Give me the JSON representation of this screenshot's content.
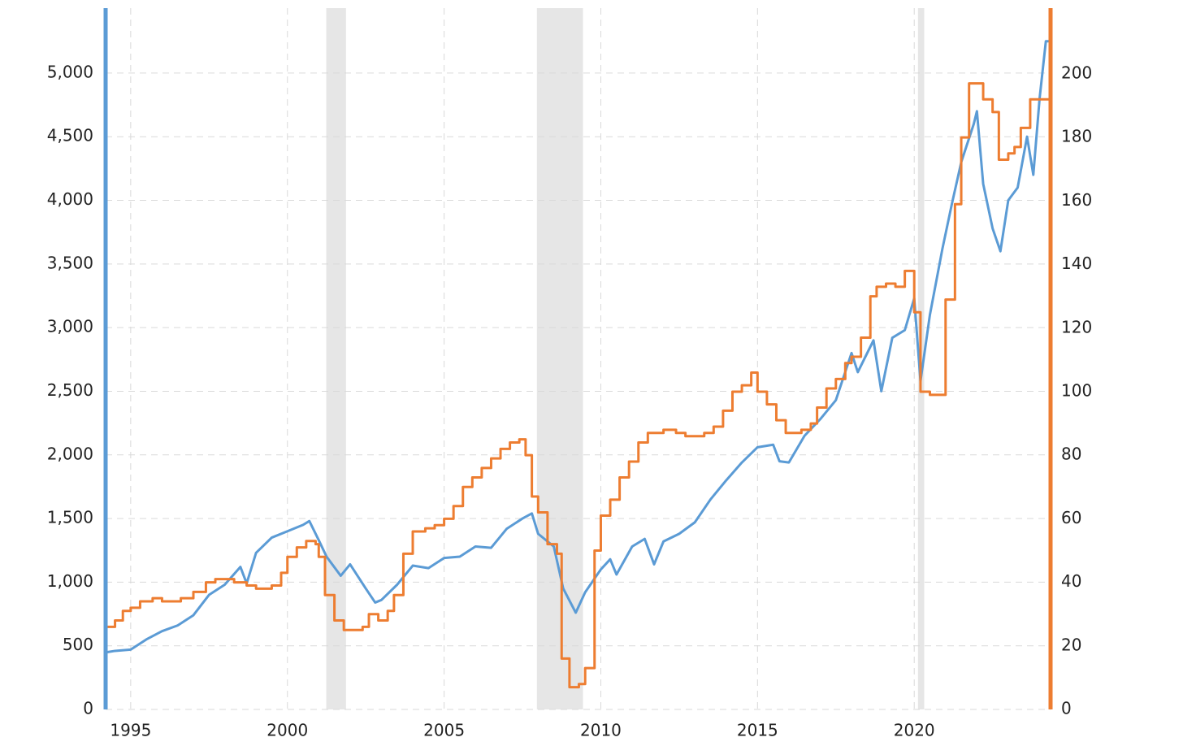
{
  "chart_data": {
    "type": "line",
    "xlim": [
      1994.2,
      2024.35
    ],
    "xticks": [
      1995,
      2000,
      2005,
      2010,
      2015,
      2020
    ],
    "ylim": [
      0,
      5510
    ],
    "yticks": [
      0,
      500,
      {
        "value": 1000,
        "label": "1,000"
      },
      {
        "value": 1500,
        "label": "1,500"
      },
      {
        "value": 2000,
        "label": "2,000"
      },
      {
        "value": 2500,
        "label": "2,500"
      },
      {
        "value": 3000,
        "label": "3,000"
      },
      {
        "value": 3500,
        "label": "3,500"
      },
      {
        "value": 4000,
        "label": "4,000"
      },
      {
        "value": 4500,
        "label": "4,500"
      },
      {
        "value": 5000,
        "label": "5,000"
      }
    ],
    "y2lim": [
      0,
      220.7
    ],
    "y2ticks": [
      0,
      20,
      40,
      60,
      80,
      100,
      120,
      140,
      160,
      180,
      200
    ],
    "grid": true,
    "recessions": [
      [
        2001.24,
        2001.87
      ],
      [
        2007.96,
        2009.43
      ],
      [
        2020.12,
        2020.32
      ]
    ],
    "series": [
      {
        "color": "#5b9bd5",
        "step": false,
        "x": [
          1994.25,
          1994.5,
          1995,
          1995.5,
          1996,
          1996.5,
          1997,
          1997.5,
          1998,
          1998.5,
          1998.7,
          1999,
          1999.5,
          2000,
          2000.5,
          2000.7,
          2001,
          2001.25,
          2001.7,
          2002,
          2002.5,
          2002.8,
          2003,
          2003.5,
          2004,
          2004.5,
          2005,
          2005.5,
          2006,
          2006.5,
          2007,
          2007.5,
          2007.8,
          2008,
          2008.5,
          2008.8,
          2009.2,
          2009.5,
          2010,
          2010.3,
          2010.5,
          2011,
          2011.4,
          2011.7,
          2012,
          2012.5,
          2013,
          2013.5,
          2014,
          2014.5,
          2015,
          2015.5,
          2015.7,
          2016,
          2016.5,
          2017,
          2017.5,
          2018,
          2018.2,
          2018.7,
          2018.95,
          2019.3,
          2019.7,
          2020,
          2020.2,
          2020.5,
          2020.9,
          2021.2,
          2021.5,
          2021.9,
          2022,
          2022.2,
          2022.5,
          2022.75,
          2023,
          2023.3,
          2023.6,
          2023.8,
          2024,
          2024.2,
          2024.3
        ],
        "values": [
          450,
          460,
          470,
          550,
          615,
          660,
          740,
          900,
          980,
          1120,
          990,
          1230,
          1350,
          1400,
          1450,
          1480,
          1330,
          1200,
          1050,
          1140,
          950,
          840,
          860,
          980,
          1130,
          1110,
          1190,
          1200,
          1280,
          1270,
          1420,
          1500,
          1540,
          1380,
          1280,
          950,
          760,
          920,
          1100,
          1180,
          1060,
          1280,
          1340,
          1140,
          1320,
          1380,
          1470,
          1650,
          1800,
          1940,
          2060,
          2080,
          1950,
          1940,
          2150,
          2280,
          2430,
          2800,
          2650,
          2900,
          2500,
          2920,
          2980,
          3230,
          2580,
          3100,
          3620,
          3970,
          4300,
          4600,
          4700,
          4130,
          3780,
          3600,
          4000,
          4100,
          4500,
          4200,
          4800,
          5250,
          5250
        ]
      },
      {
        "color": "#ed7d31",
        "step": true,
        "axis": "y2",
        "x": [
          1994.25,
          1994.5,
          1994.75,
          1995,
          1995.3,
          1995.7,
          1996,
          1996.6,
          1997,
          1997.4,
          1997.7,
          1998.3,
          1998.7,
          1999,
          1999.5,
          1999.8,
          2000,
          2000.3,
          2000.6,
          2000.9,
          2001,
          2001.2,
          2001.5,
          2001.8,
          2002.4,
          2002.6,
          2002.9,
          2003.2,
          2003.4,
          2003.7,
          2004,
          2004.4,
          2004.7,
          2005,
          2005.3,
          2005.6,
          2005.9,
          2006.2,
          2006.5,
          2006.8,
          2007.1,
          2007.4,
          2007.6,
          2007.8,
          2008,
          2008.3,
          2008.6,
          2008.75,
          2009,
          2009.3,
          2009.5,
          2009.8,
          2010,
          2010.3,
          2010.6,
          2010.9,
          2011.2,
          2011.5,
          2012,
          2012.4,
          2012.7,
          2013.3,
          2013.6,
          2013.9,
          2014.2,
          2014.5,
          2014.8,
          2015,
          2015.3,
          2015.6,
          2015.9,
          2016.4,
          2016.7,
          2016.9,
          2017.2,
          2017.5,
          2017.8,
          2018,
          2018.3,
          2018.6,
          2018.8,
          2019.1,
          2019.4,
          2019.7,
          2020,
          2020.2,
          2020.5,
          2021,
          2021.3,
          2021.5,
          2021.75,
          2022.2,
          2022.5,
          2022.7,
          2023,
          2023.2,
          2023.4,
          2023.7,
          2024.3
        ],
        "values": [
          26,
          28,
          31,
          32,
          34,
          35,
          34,
          35,
          37,
          40,
          41,
          40,
          39,
          38,
          39,
          43,
          48,
          51,
          53,
          52,
          48,
          36,
          28,
          25,
          26,
          30,
          28,
          31,
          36,
          49,
          56,
          57,
          58,
          60,
          64,
          70,
          73,
          76,
          79,
          82,
          84,
          85,
          80,
          67,
          62,
          52,
          49,
          16,
          7,
          8,
          13,
          50,
          61,
          66,
          73,
          78,
          84,
          87,
          88,
          87,
          86,
          87,
          89,
          94,
          100,
          102,
          106,
          100,
          96,
          91,
          87,
          88,
          90,
          95,
          101,
          104,
          109,
          111,
          117,
          130,
          133,
          134,
          133,
          138,
          125,
          100,
          99,
          129,
          159,
          180,
          197,
          192,
          188,
          173,
          175,
          177,
          183,
          192,
          192
        ]
      }
    ]
  }
}
